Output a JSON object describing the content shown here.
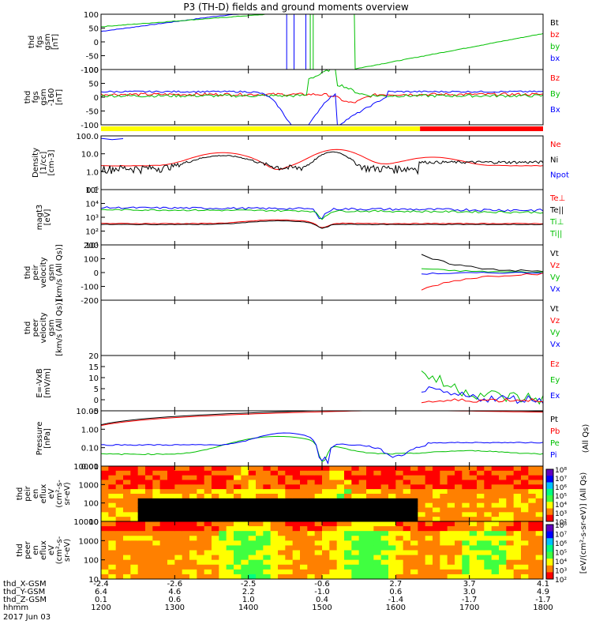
{
  "title": "P3 (TH-D) fields and ground moments overview",
  "date_label": "2017 Jun 03",
  "chart_data": [
    {
      "id": "fgs_gsm",
      "type": "line",
      "ylabel": [
        "thd",
        "fgs",
        "gsm",
        "[nT]"
      ],
      "ylim": [
        -100,
        100
      ],
      "yticks": [
        "100",
        "50",
        "0",
        "-50",
        "-100"
      ],
      "legend": [
        {
          "name": "Bt",
          "color": "#000000"
        },
        {
          "name": "bz",
          "color": "#ff0000"
        },
        {
          "name": "by",
          "color": "#00c000"
        },
        {
          "name": "bx",
          "color": "#0000ff"
        }
      ]
    },
    {
      "id": "fgs_gsm_160",
      "type": "line",
      "ylabel": [
        "thd",
        "fgs",
        "gsm",
        "-160",
        "[nT]"
      ],
      "ylim": [
        -100,
        100
      ],
      "yticks": [
        "100",
        "50",
        "0",
        "-50",
        "-100"
      ],
      "legend": [
        {
          "name": "Bz",
          "color": "#ff0000"
        },
        {
          "name": "By",
          "color": "#00c000"
        },
        {
          "name": "Bx",
          "color": "#0000ff"
        }
      ]
    },
    {
      "id": "mode_bar",
      "type": "bar",
      "segments": [
        {
          "from": 1200,
          "to": 1633,
          "color": "#ffff00"
        },
        {
          "from": 1633,
          "to": 1800,
          "color": "#ff0000"
        }
      ]
    },
    {
      "id": "density",
      "type": "line",
      "scale": "log",
      "ylabel": [
        "Density",
        "[1/cc]",
        "[cm-3]"
      ],
      "ylim": [
        0.01,
        100
      ],
      "yticks": [
        "100.0",
        "10.0",
        "1.0",
        "0.1"
      ],
      "legend": [
        {
          "name": "Ne",
          "color": "#ff0000"
        },
        {
          "name": "Ni",
          "color": "#000000"
        },
        {
          "name": "Npot",
          "color": "#0000ff"
        }
      ]
    },
    {
      "id": "temperature",
      "type": "line",
      "scale": "log",
      "ylabel": [
        "magt3",
        "[eV]"
      ],
      "ylim": [
        10,
        100000
      ],
      "yticks": [
        "10⁵",
        "10⁴",
        "10³",
        "10²",
        "10¹"
      ],
      "legend": [
        {
          "name": "Te⊥",
          "color": "#ff0000"
        },
        {
          "name": "Te||",
          "color": "#000000"
        },
        {
          "name": "Ti⊥",
          "color": "#00c000"
        },
        {
          "name": "Ti||",
          "color": "#00c000"
        }
      ]
    },
    {
      "id": "peir_velocity",
      "type": "line",
      "ylabel": [
        "thd",
        "peir",
        "velocity",
        "gsm",
        "[km/s (All Qs)]"
      ],
      "ylim": [
        -200,
        200
      ],
      "yticks": [
        "200",
        "100",
        "0",
        "-100",
        "-200"
      ],
      "legend": [
        {
          "name": "Vt",
          "color": "#000000"
        },
        {
          "name": "Vz",
          "color": "#ff0000"
        },
        {
          "name": "Vy",
          "color": "#00c000"
        },
        {
          "name": "Vx",
          "color": "#0000ff"
        }
      ]
    },
    {
      "id": "peer_velocity",
      "type": "line",
      "ylabel": [
        "thd",
        "peer",
        "velocity",
        "gsm",
        "[km/s (All Qs)]"
      ],
      "ylim": [
        -200,
        200
      ],
      "yticks": [],
      "legend": [
        {
          "name": "Vt",
          "color": "#000000"
        },
        {
          "name": "Vz",
          "color": "#ff0000"
        },
        {
          "name": "Vy",
          "color": "#00c000"
        },
        {
          "name": "Vx",
          "color": "#0000ff"
        }
      ]
    },
    {
      "id": "efield",
      "type": "line",
      "ylabel": [
        "E=-VxB",
        "[mV/m]"
      ],
      "ylim": [
        -5,
        20
      ],
      "yticks": [
        "20",
        "15",
        "10",
        "5",
        "0",
        "-5"
      ],
      "legend": [
        {
          "name": "Ez",
          "color": "#ff0000"
        },
        {
          "name": "Ey",
          "color": "#00c000"
        },
        {
          "name": "Ex",
          "color": "#0000ff"
        }
      ]
    },
    {
      "id": "pressure",
      "type": "line",
      "scale": "log",
      "ylabel": [
        "Pressure",
        "[nPa]"
      ],
      "ylim": [
        0.005,
        20
      ],
      "yticks": [
        "10.00",
        "1.00",
        "0.10",
        "0.01"
      ],
      "legend": [
        {
          "name": "Pt",
          "color": "#000000"
        },
        {
          "name": "Pb",
          "color": "#ff0000"
        },
        {
          "name": "Pe",
          "color": "#00c000"
        },
        {
          "name": "Pi",
          "color": "#0000ff"
        }
      ],
      "legend_side_label": "(All Qs)"
    },
    {
      "id": "peir_spec",
      "type": "heatmap",
      "ylabel": [
        "thd",
        "peir",
        "en",
        "eflux",
        "eV",
        "(cm²-s-",
        "sr-eV)"
      ],
      "yticks": [
        "10000",
        "1000",
        "100",
        "10"
      ]
    },
    {
      "id": "peer_spec",
      "type": "heatmap",
      "ylabel": [
        "thd",
        "peer",
        "en",
        "eflux",
        "eV",
        "(cm²-s-",
        "sr-eV)"
      ],
      "yticks": [
        "10000",
        "1000",
        "100",
        "10"
      ]
    }
  ],
  "colorbar": {
    "label": "[eV/(cm²-s-sr-eV)] (All Qs)",
    "ticks_top": [
      "10⁸",
      "10⁷",
      "10⁶",
      "10⁵",
      "10⁴",
      "10³",
      "10²"
    ],
    "ticks_bottom": [
      "10⁸",
      "10⁷",
      "10⁶",
      "10⁵",
      "10⁴",
      "10³",
      "10²"
    ],
    "colors": [
      "#ff0000",
      "#ff8000",
      "#ffff00",
      "#40ff40",
      "#00ff80",
      "#00c0ff",
      "#0000ff",
      "#6000c0"
    ]
  },
  "x_axis": {
    "row_labels": [
      "thd_X-GSM",
      "thd_Y-GSM",
      "thd_Z-GSM",
      "hhmm",
      "2017 Jun 03"
    ],
    "ticks": [
      {
        "time": 1200,
        "hhmm": "1200",
        "x": "-2.4",
        "y": "6.4",
        "z": "0.1"
      },
      {
        "time": 1300,
        "hhmm": "1300",
        "x": "-2.6",
        "y": "4.6",
        "z": "0.6"
      },
      {
        "time": 1400,
        "hhmm": "1400",
        "x": "-2.5",
        "y": "2.2",
        "z": "1.0"
      },
      {
        "time": 1500,
        "hhmm": "1500",
        "x": "-0.6",
        "y": "-1.0",
        "z": "0.4"
      },
      {
        "time": 1600,
        "hhmm": "1600",
        "x": "2.7",
        "y": "0.6",
        "z": "-1.4"
      },
      {
        "time": 1700,
        "hhmm": "1700",
        "x": "3.7",
        "y": "3.0",
        "z": "-1.7"
      },
      {
        "time": 1800,
        "hhmm": "1800",
        "x": "4.1",
        "y": "4.9",
        "z": "-1.7"
      }
    ]
  }
}
